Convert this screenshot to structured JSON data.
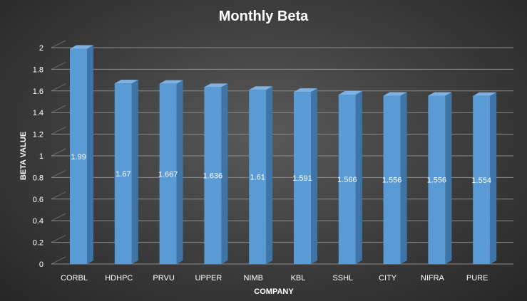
{
  "chart_data": {
    "type": "bar",
    "title": "Monthly Beta",
    "xlabel": "COMPANY",
    "ylabel": "BETA VALUE",
    "categories": [
      "CORBL",
      "HDHPC",
      "PRVU",
      "UPPER",
      "NIMB",
      "KBL",
      "SSHL",
      "CITY",
      "NIFRA",
      "PURE"
    ],
    "values": [
      1.99,
      1.67,
      1.667,
      1.636,
      1.61,
      1.591,
      1.566,
      1.556,
      1.556,
      1.554
    ],
    "value_labels": [
      "1.99",
      "1.67",
      "1.667",
      "1.636",
      "1.61",
      "1.591",
      "1.566",
      "1.556",
      "1.556",
      "1.554"
    ],
    "yticks": [
      "0",
      "0.2",
      "0.4",
      "0.6",
      "0.8",
      "1",
      "1.2",
      "1.4",
      "1.6",
      "1.8",
      "2"
    ],
    "ylim": [
      0,
      2
    ],
    "grid": true,
    "legend": "none",
    "colors": {
      "bar_front": "#5b9bd5",
      "bar_side": "#3f74a6",
      "bar_top": "#7fb2e2",
      "gridline": "#8a8a8a"
    }
  }
}
